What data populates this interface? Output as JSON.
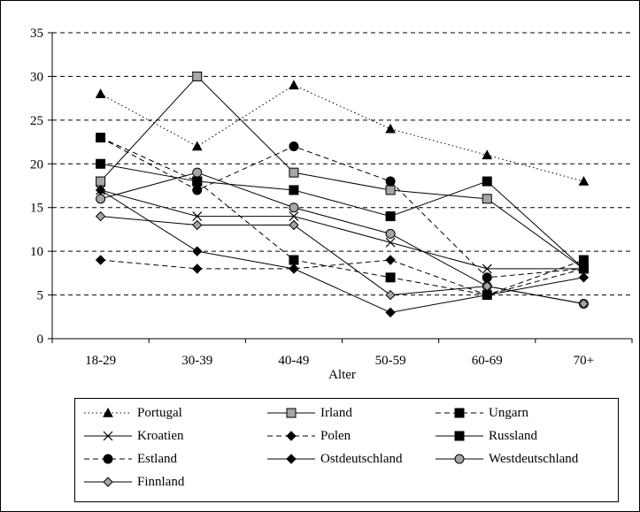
{
  "chart_data": {
    "type": "line",
    "xlabel": "Alter",
    "ylabel": "",
    "ylim": [
      0,
      35
    ],
    "yticks": [
      0,
      5,
      10,
      15,
      20,
      25,
      30,
      35
    ],
    "categories": [
      "18-29",
      "30-39",
      "40-49",
      "50-59",
      "60-69",
      "70+"
    ],
    "grid": "horizontal dashed",
    "legend_position": "bottom",
    "series": [
      {
        "name": "Portugal",
        "values": [
          28,
          22,
          29,
          24,
          21,
          18
        ],
        "line": "dotted",
        "marker": "triangle",
        "markerFill": "#000000"
      },
      {
        "name": "Irland",
        "values": [
          18,
          30,
          19,
          17,
          16,
          8
        ],
        "line": "solid",
        "marker": "square",
        "markerFill": "#a6a6a6"
      },
      {
        "name": "Ungarn",
        "values": [
          23,
          18,
          9,
          7,
          5,
          9
        ],
        "line": "dashed",
        "marker": "square",
        "markerFill": "#000000"
      },
      {
        "name": "Kroatien",
        "values": [
          17,
          14,
          14,
          11,
          8,
          8
        ],
        "line": "solid",
        "marker": "x",
        "markerFill": "none"
      },
      {
        "name": "Polen",
        "values": [
          9,
          8,
          8,
          9,
          5,
          8
        ],
        "line": "dashed",
        "marker": "diamond",
        "markerFill": "#000000"
      },
      {
        "name": "Russland",
        "values": [
          20,
          18,
          17,
          14,
          18,
          8
        ],
        "line": "solid",
        "marker": "square",
        "markerFill": "#000000"
      },
      {
        "name": "Estland",
        "values": [
          23,
          17,
          22,
          18,
          7,
          8
        ],
        "line": "dashed",
        "marker": "circle",
        "markerFill": "#000000"
      },
      {
        "name": "Ostdeutschland",
        "values": [
          17,
          10,
          8,
          3,
          5,
          7
        ],
        "line": "solid",
        "marker": "diamond",
        "markerFill": "#000000"
      },
      {
        "name": "Westdeutschland",
        "values": [
          16,
          19,
          15,
          12,
          6,
          4
        ],
        "line": "solid",
        "marker": "circle",
        "markerFill": "#a6a6a6"
      },
      {
        "name": "Finnland",
        "values": [
          14,
          13,
          13,
          5,
          6,
          4
        ],
        "line": "solid",
        "marker": "diamond",
        "markerFill": "#a6a6a6"
      }
    ]
  }
}
